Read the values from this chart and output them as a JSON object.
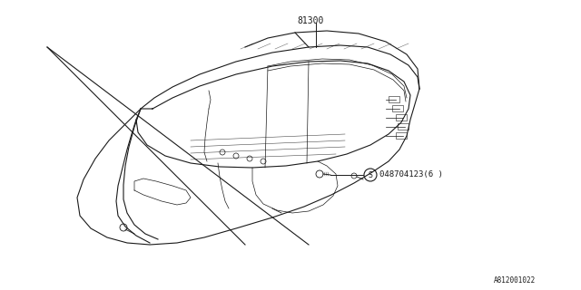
{
  "bg_color": "#ffffff",
  "line_color": "#1a1a1a",
  "label_81300": "81300",
  "label_part": "048704123(6 )",
  "footnote": "A812001022",
  "fig_width": 6.4,
  "fig_height": 3.2,
  "dpi": 100
}
